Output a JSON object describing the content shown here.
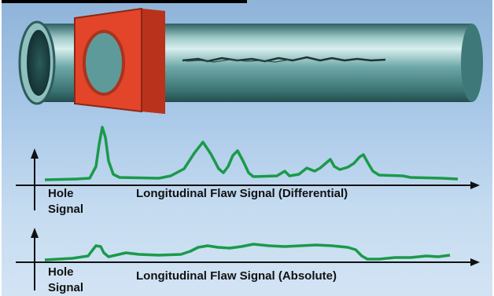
{
  "labels": {
    "hole_signal_1": [
      "Hole",
      "Signal"
    ],
    "flaw_signal_1": "Longitudinal Flaw Signal (Differential)",
    "hole_signal_2": [
      "Hole",
      "Signal"
    ],
    "flaw_signal_2": "Longitudinal Flaw Signal (Absolute)"
  },
  "colors": {
    "background_top": "#8fb4d9",
    "background_bottom": "#d3e4f4",
    "tube": "#5f9a9a",
    "probe": "#e2452a",
    "signal": "#1a9a4a",
    "axis": "#111111"
  }
}
